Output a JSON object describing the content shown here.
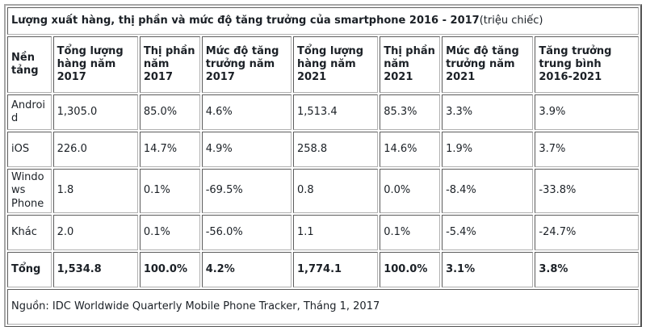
{
  "colors": {
    "background": "#ffffff",
    "border_gray": "#808080",
    "text": "#1b2026"
  },
  "chart_data": {
    "type": "table",
    "title_bold": "Lượng xuất hàng, thị phần và mức độ tăng trưởng của smartphone 2016 - 2017",
    "title_note": "(triệu chiếc)",
    "units": "triệu chiếc",
    "columns": [
      "Nền tảng",
      "Tổng lượng hàng năm 2017",
      "Thị phần năm 2017",
      "Mức độ tăng trưởng năm 2017",
      "Tổng lượng hàng năm 2021",
      "Thị phần năm 2021",
      "Mức độ tăng trưởng năm 2021",
      "Tăng trưởng trung bình 2016-2021"
    ],
    "rows": [
      {
        "cells": [
          "Android",
          "1,305.0",
          "85.0%",
          "4.6%",
          "1,513.4",
          "85.3%",
          "3.3%",
          "3.9%"
        ],
        "total": false
      },
      {
        "cells": [
          "iOS",
          "226.0",
          "14.7%",
          "4.9%",
          "258.8",
          "14.6%",
          "1.9%",
          "3.7%"
        ],
        "total": false
      },
      {
        "cells": [
          "Windows Phone",
          "1.8",
          "0.1%",
          "-69.5%",
          "0.8",
          "0.0%",
          "-8.4%",
          "-33.8%"
        ],
        "total": false
      },
      {
        "cells": [
          "Khác",
          "2.0",
          "0.1%",
          "-56.0%",
          "1.1",
          "0.1%",
          "-5.4%",
          "-24.7%"
        ],
        "total": false
      },
      {
        "cells": [
          "Tổng",
          "1,534.8",
          "100.0%",
          "4.2%",
          "1,774.1",
          "100.0%",
          "3.1%",
          "3.8%"
        ],
        "total": true
      }
    ],
    "source": "Nguồn: IDC Worldwide Quarterly Mobile Phone Tracker, Tháng 1, 2017"
  }
}
